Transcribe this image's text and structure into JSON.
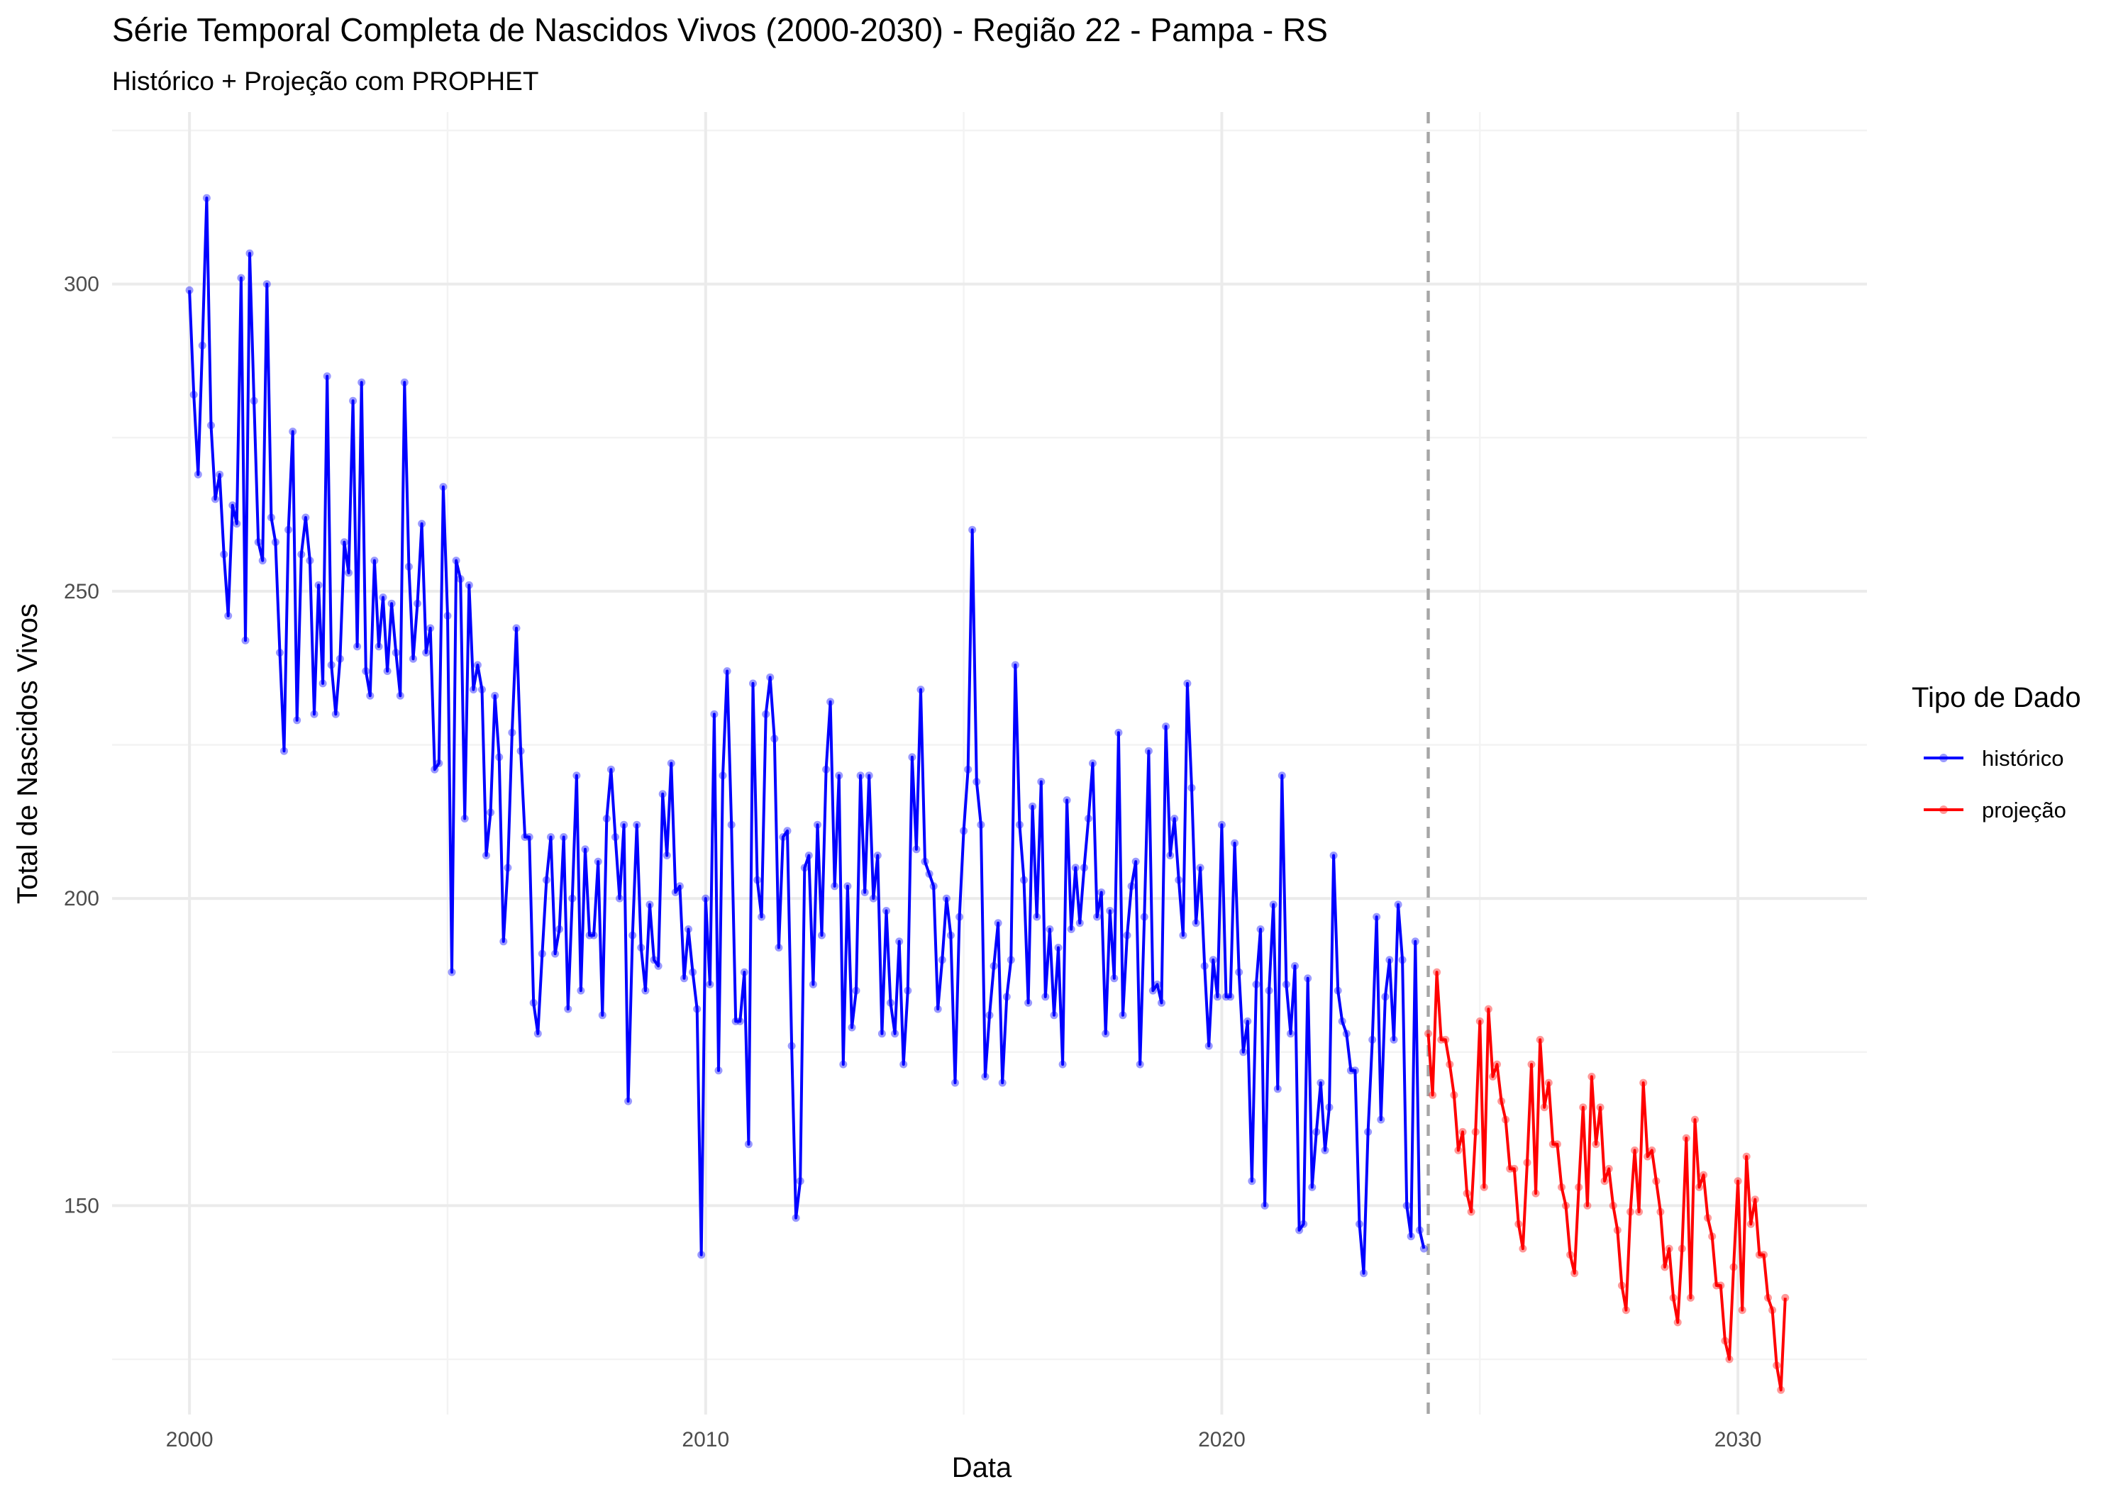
{
  "chart_data": {
    "type": "line",
    "title": "Série Temporal Completa de Nascidos Vivos (2000-2030) -  Região 22 - Pampa - RS",
    "subtitle": "Histórico + Projeção com PROPHET",
    "xlabel": "Data",
    "ylabel": "Total de Nascidos Vivos",
    "x_ticks": [
      "2000",
      "2010",
      "2020",
      "2030"
    ],
    "y_ticks": [
      "150",
      "200",
      "250",
      "300"
    ],
    "xlim": [
      1998.5,
      2032.5
    ],
    "ylim": [
      116,
      328
    ],
    "grid": true,
    "legend": {
      "title": "Tipo de Dado",
      "position": "right"
    },
    "cutoff_x": 2024.0,
    "colors": {
      "historico": "#0000ff",
      "projecao": "#ff0000",
      "cutoff": "#a6a6a6"
    },
    "series": [
      {
        "name": "histórico",
        "x_start": 2000.0,
        "step": 0.0833333,
        "values": [
          299,
          282,
          269,
          290,
          314,
          277,
          265,
          269,
          256,
          246,
          264,
          261,
          301,
          242,
          305,
          281,
          258,
          255,
          300,
          262,
          258,
          240,
          224,
          260,
          276,
          229,
          256,
          262,
          255,
          230,
          251,
          235,
          285,
          238,
          230,
          239,
          258,
          253,
          281,
          241,
          284,
          237,
          233,
          255,
          241,
          249,
          237,
          248,
          240,
          233,
          284,
          254,
          239,
          248,
          261,
          240,
          244,
          221,
          222,
          267,
          246,
          188,
          255,
          252,
          213,
          251,
          234,
          238,
          234,
          207,
          214,
          233,
          223,
          193,
          205,
          227,
          244,
          224,
          210,
          210,
          183,
          178,
          191,
          203,
          210,
          191,
          195,
          210,
          182,
          200,
          220,
          185,
          208,
          194,
          194,
          206,
          181,
          213,
          221,
          210,
          200,
          212,
          167,
          194,
          212,
          192,
          185,
          199,
          190,
          189,
          217,
          207,
          222,
          201,
          202,
          187,
          195,
          188,
          182,
          142,
          200,
          186,
          230,
          172,
          220,
          237,
          212,
          180,
          180,
          188,
          160,
          235,
          203,
          197,
          230,
          236,
          226,
          192,
          210,
          211,
          176,
          148,
          154,
          205,
          207,
          186,
          212,
          194,
          221,
          232,
          202,
          220,
          173,
          202,
          179,
          185,
          220,
          201,
          220,
          200,
          207,
          178,
          198,
          183,
          178,
          193,
          173,
          185,
          223,
          208,
          234,
          206,
          204,
          202,
          182,
          190,
          200,
          194,
          170,
          197,
          211,
          221,
          260,
          219,
          212,
          171,
          181,
          189,
          196,
          170,
          184,
          190,
          238,
          212,
          203,
          183,
          215,
          197,
          219,
          184,
          195,
          181,
          192,
          173,
          216,
          195,
          205,
          196,
          205,
          213,
          222,
          197,
          201,
          178,
          198,
          187,
          227,
          181,
          194,
          202,
          206,
          173,
          197,
          224,
          185,
          186,
          183,
          228,
          207,
          213,
          203,
          194,
          235,
          218,
          196,
          205,
          189,
          176,
          190,
          184,
          212,
          184,
          184,
          209,
          188,
          175,
          180,
          154,
          186,
          195,
          150,
          185,
          199,
          169,
          220,
          186,
          178,
          189,
          146,
          147,
          187,
          153,
          162,
          170,
          159,
          166,
          207,
          185,
          180,
          178,
          172,
          172,
          147,
          139,
          162,
          177,
          197,
          164,
          184,
          190,
          177,
          199,
          190,
          150,
          145,
          193,
          146,
          143
        ]
      },
      {
        "name": "projeção",
        "x_start": 2024.0,
        "step": 0.0833333,
        "values": [
          178,
          168,
          188,
          177,
          177,
          173,
          168,
          159,
          162,
          152,
          149,
          162,
          180,
          153,
          182,
          171,
          173,
          167,
          164,
          156,
          156,
          147,
          143,
          157,
          173,
          152,
          177,
          166,
          170,
          160,
          160,
          153,
          150,
          142,
          139,
          153,
          166,
          150,
          171,
          160,
          166,
          154,
          156,
          150,
          146,
          137,
          133,
          149,
          159,
          149,
          170,
          158,
          159,
          154,
          149,
          140,
          143,
          135,
          131,
          143,
          161,
          135,
          164,
          153,
          155,
          148,
          145,
          137,
          137,
          128,
          125,
          140,
          154,
          133,
          158,
          147,
          151,
          142,
          142,
          135,
          133,
          124,
          120,
          135
        ]
      }
    ]
  }
}
